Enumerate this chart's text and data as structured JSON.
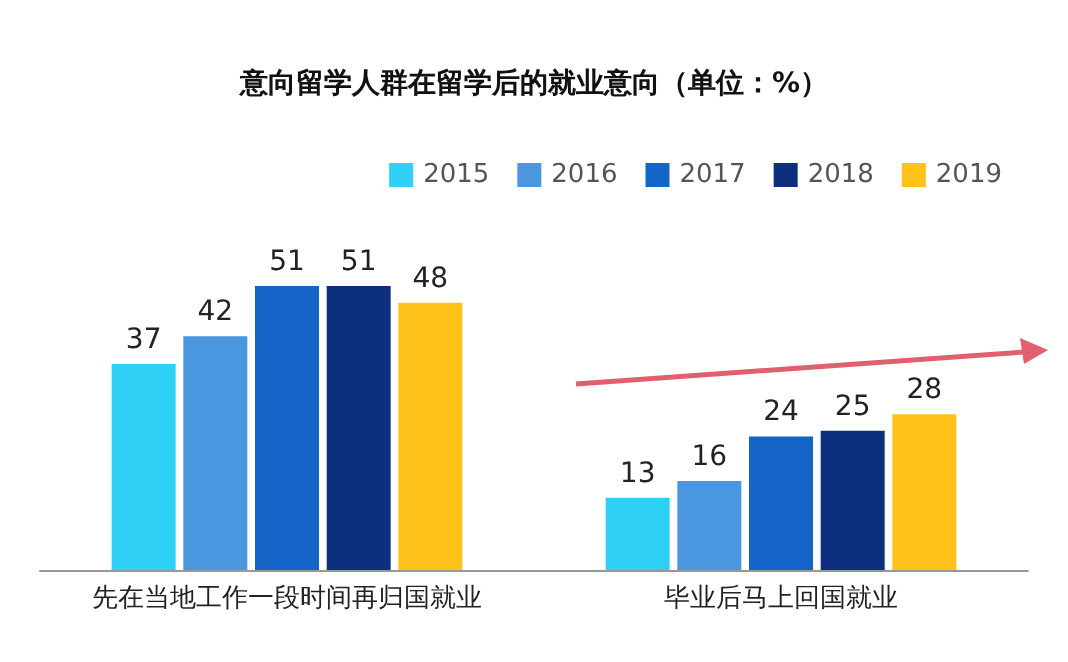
{
  "chart_data": {
    "type": "bar",
    "title": "意向留学人群在留学后的就业意向（单位：%）",
    "categories": [
      "先在当地工作一段时间再归国就业",
      "毕业后马上回国就业"
    ],
    "series": [
      {
        "name": "2015",
        "color": "#2fd0f5",
        "values": [
          37,
          13
        ]
      },
      {
        "name": "2016",
        "color": "#4a97e0",
        "values": [
          42,
          16
        ]
      },
      {
        "name": "2017",
        "color": "#1565c8",
        "values": [
          51,
          24
        ]
      },
      {
        "name": "2018",
        "color": "#0d2f7e",
        "values": [
          51,
          25
        ]
      },
      {
        "name": "2019",
        "color": "#ffc21a",
        "values": [
          48,
          28
        ]
      }
    ],
    "data_labels": true,
    "legend": "top right"
  }
}
